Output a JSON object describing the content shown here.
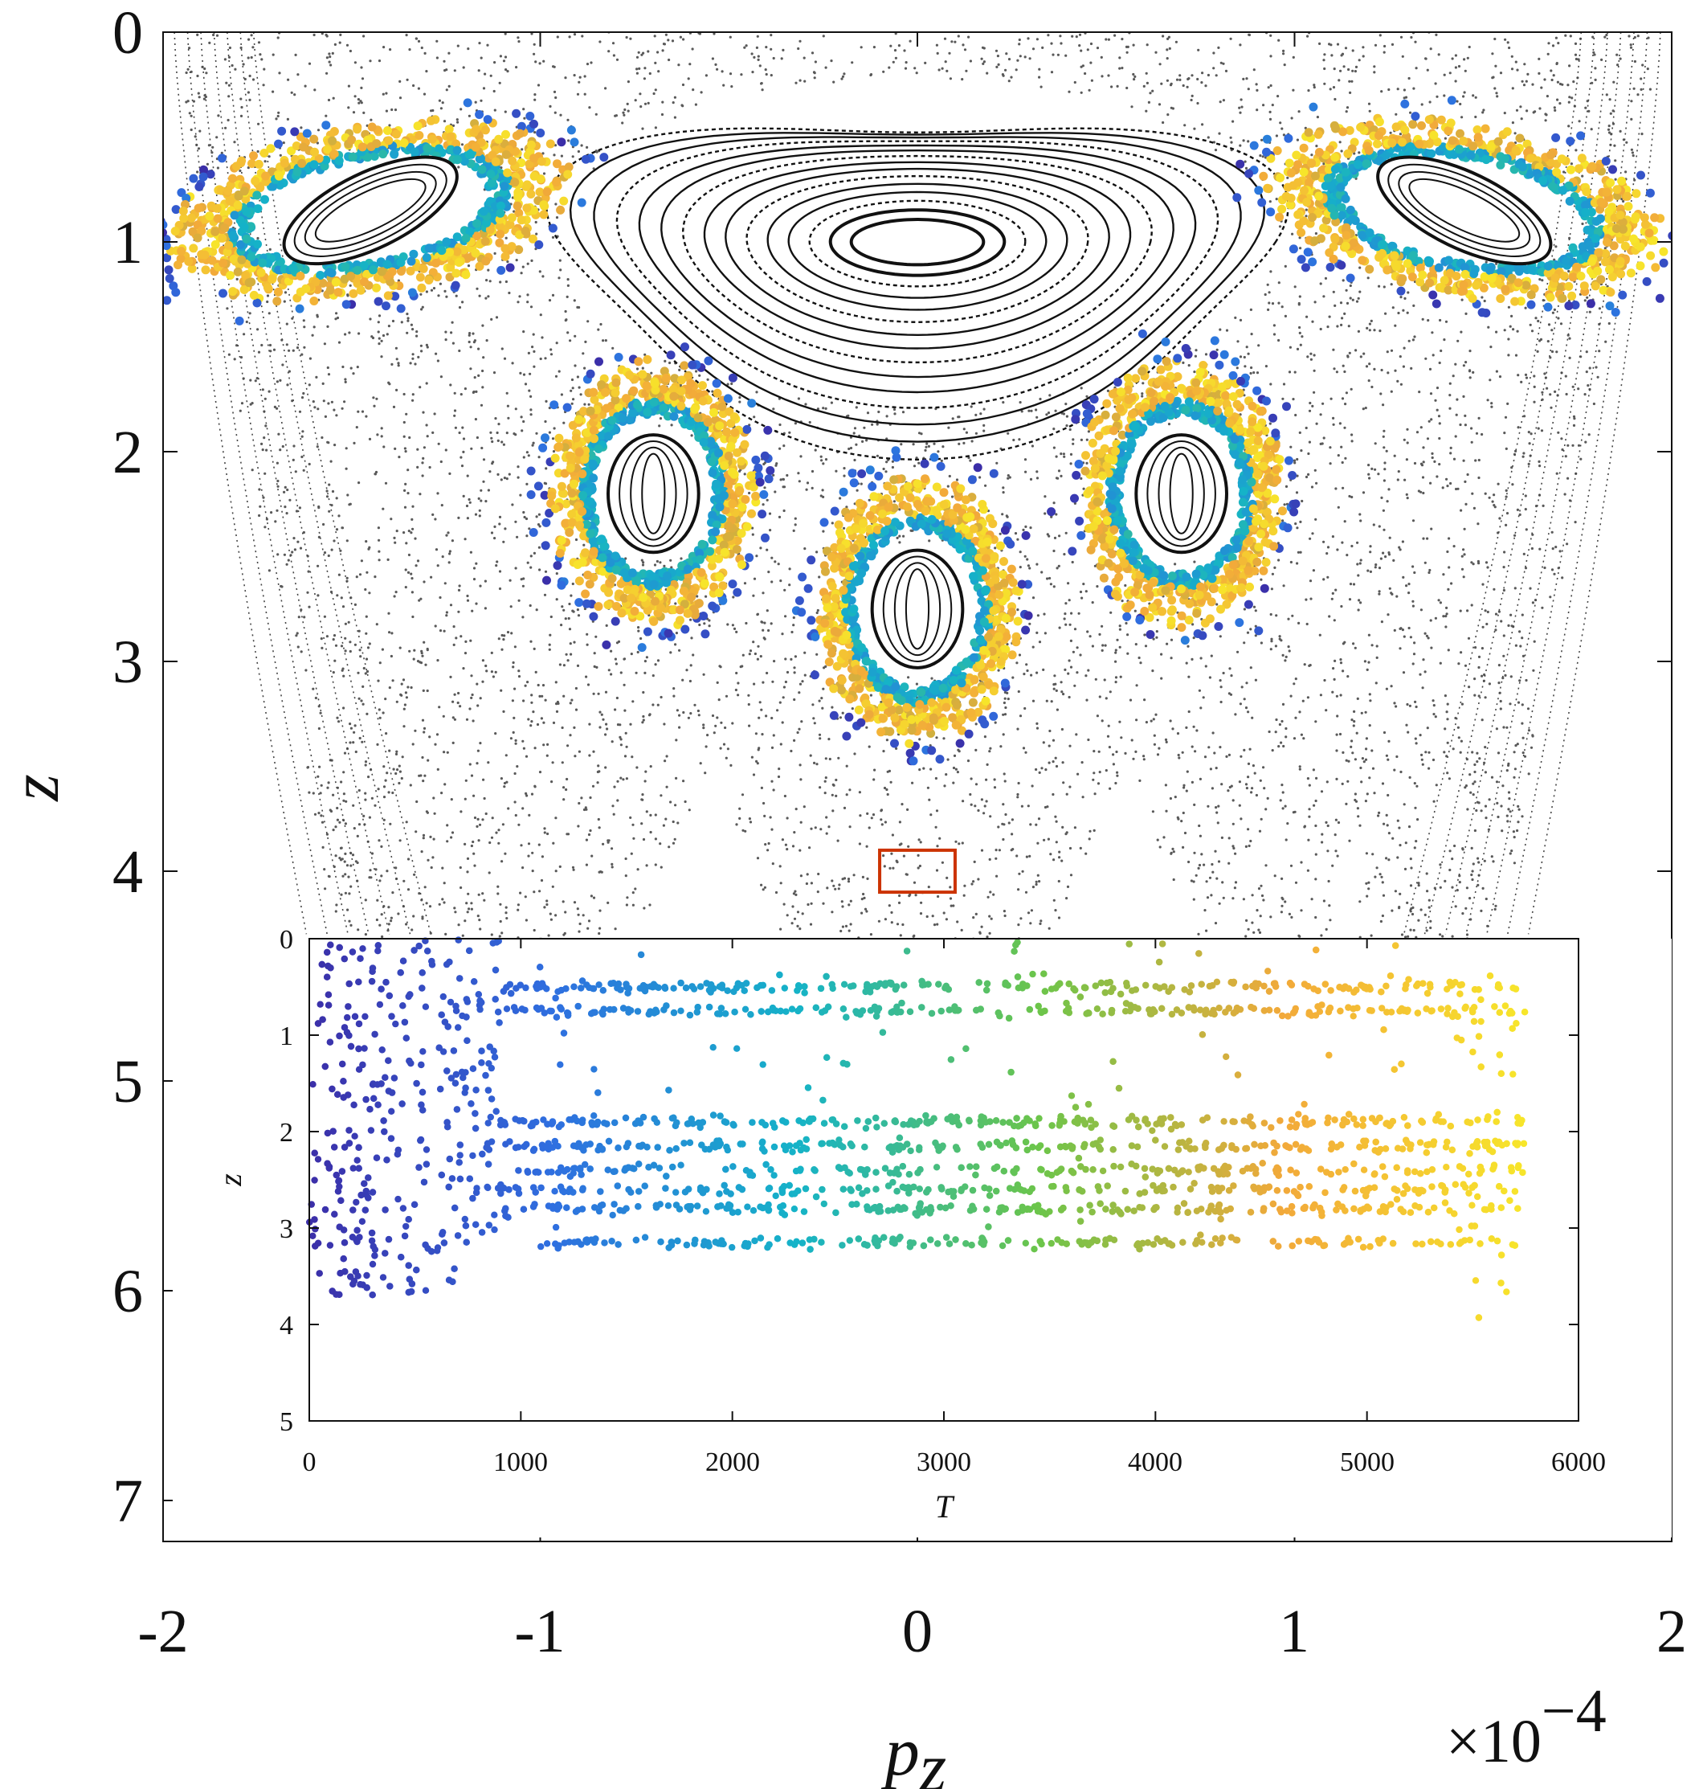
{
  "chart_data": [
    {
      "type": "scatter",
      "xlabel": "p_z",
      "xlabel_main": "p",
      "xlabel_sub": "z",
      "ylabel": "z",
      "x_multiplier": "×10",
      "x_multiplier_exp": "−4",
      "xlim": [
        -2,
        2
      ],
      "ylim": [
        0,
        7.2
      ],
      "y_reversed": true,
      "xticks": [
        -2,
        -1,
        0,
        1,
        2
      ],
      "xtick_labels": [
        "-2",
        "-1",
        "0",
        "1",
        "2"
      ],
      "yticks": [
        0,
        1,
        2,
        3,
        4,
        5,
        6,
        7
      ],
      "ytick_labels": [
        "0",
        "1",
        "2",
        "3",
        "4",
        "5",
        "6",
        "7"
      ],
      "grid": false,
      "center": {
        "x": 0,
        "z": 1.0
      },
      "island_centers": [
        {
          "x": -1.45,
          "z": 0.85
        },
        {
          "x": 1.45,
          "z": 0.85
        },
        {
          "x": -0.7,
          "z": 2.2
        },
        {
          "x": 0.7,
          "z": 2.2
        },
        {
          "x": 0,
          "z": 2.75
        }
      ],
      "highlight_box": {
        "x": [
          -0.1,
          0.1
        ],
        "z": [
          3.9,
          4.1
        ],
        "color": "#cc3300"
      },
      "colormap": [
        "#3b2ea8",
        "#2f6fe0",
        "#15b3c8",
        "#6cc54a",
        "#f2a93a",
        "#f7e62a"
      ]
    },
    {
      "type": "scatter",
      "inset": true,
      "xlabel": "T",
      "ylabel": "z",
      "xlim": [
        0,
        6000
      ],
      "ylim": [
        0,
        5
      ],
      "y_reversed": true,
      "xticks": [
        0,
        1000,
        2000,
        3000,
        4000,
        5000,
        6000
      ],
      "xtick_labels": [
        "0",
        "1000",
        "2000",
        "3000",
        "4000",
        "5000",
        "6000"
      ],
      "yticks": [
        0,
        1,
        2,
        3,
        4,
        5
      ],
      "ytick_labels": [
        "0",
        "1",
        "2",
        "3",
        "4",
        "5"
      ],
      "grid": false,
      "t_end": 5750,
      "bands_z": [
        0.5,
        0.75,
        1.9,
        2.15,
        2.4,
        2.6,
        2.8,
        3.15
      ],
      "colormap": [
        "#3b2ea8",
        "#2f6fe0",
        "#15b3c8",
        "#6cc54a",
        "#f2a93a",
        "#f7e62a"
      ]
    }
  ]
}
